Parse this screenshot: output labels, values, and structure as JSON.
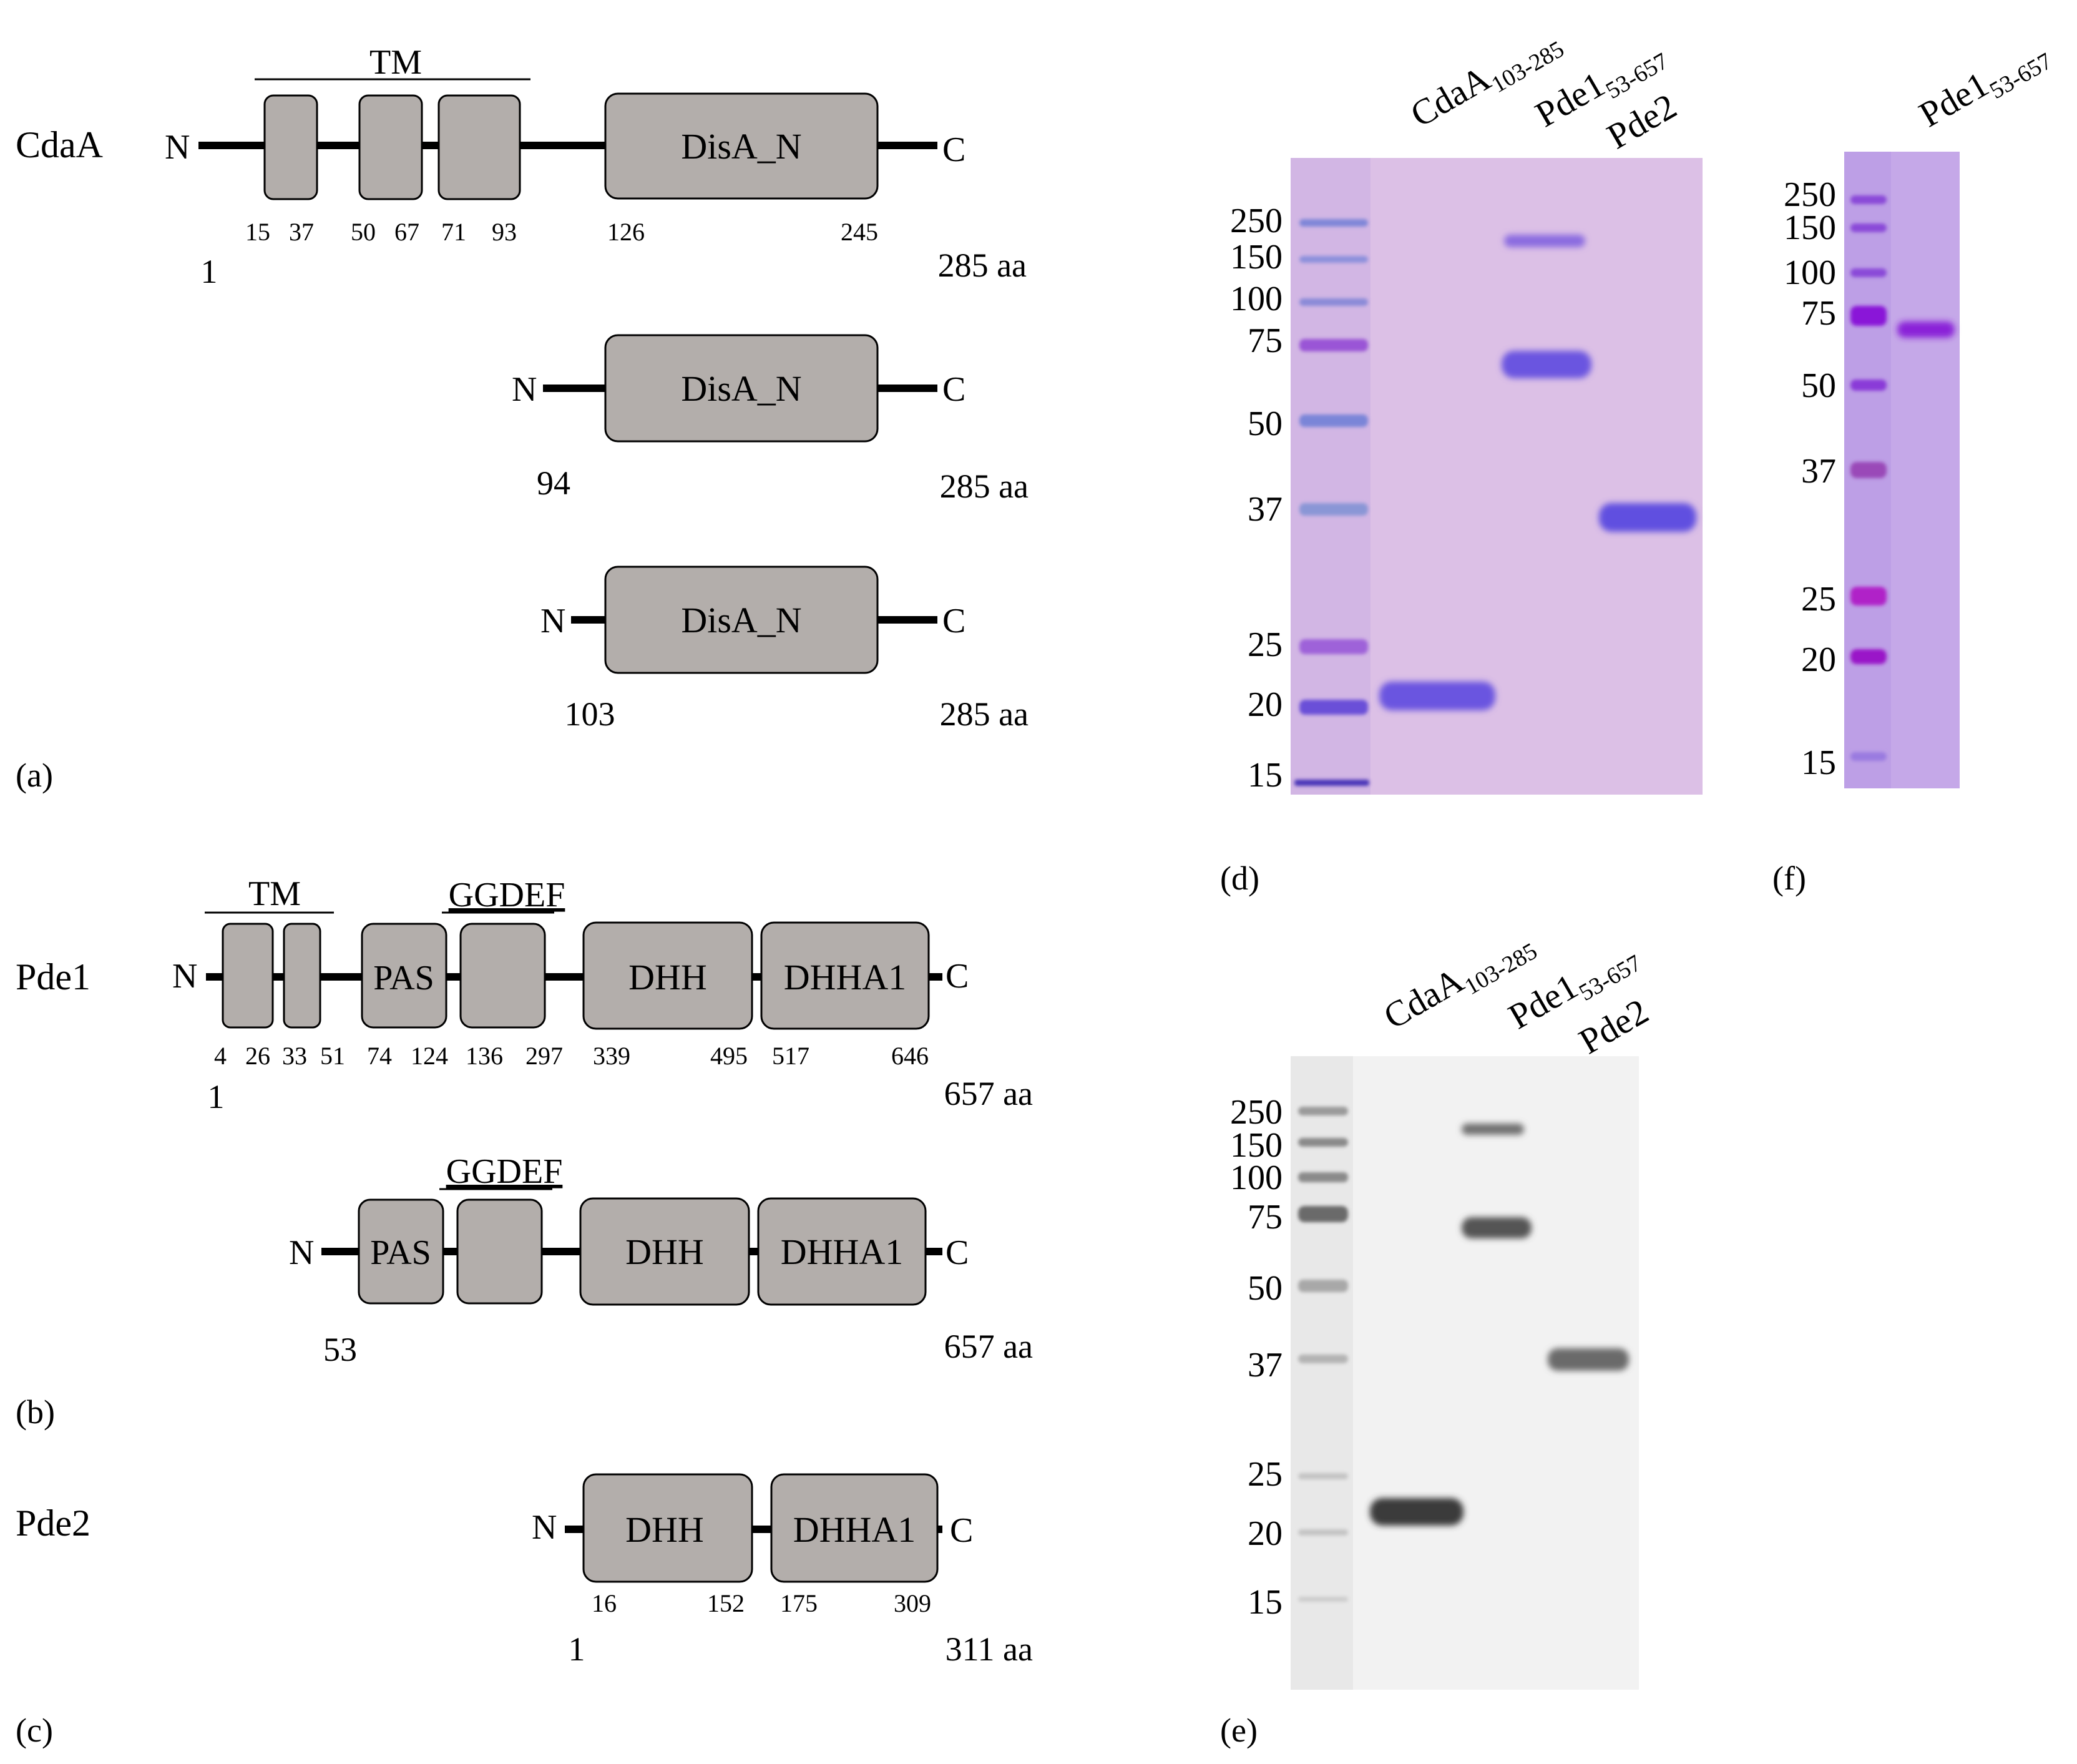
{
  "panel_labels": {
    "a": "(a)",
    "b": "(b)",
    "c": "(c)",
    "d": "(d)",
    "e": "(e)",
    "f": "(f)"
  },
  "panel_a": {
    "protein": "CdaA",
    "tm": "TM",
    "domain": "DisA_N",
    "n": "N",
    "c": "C",
    "full": {
      "positions": [
        "15",
        "37",
        "50",
        "67",
        "71",
        "93",
        "126",
        "245"
      ],
      "start": "1",
      "end": "285 aa"
    },
    "construct1": {
      "start": "94",
      "end": "285 aa"
    },
    "construct2": {
      "start": "103",
      "end": "285 aa"
    }
  },
  "panel_b": {
    "protein": "Pde1",
    "tm": "TM",
    "ggdef": "GGDEF",
    "pas": "PAS",
    "dhh": "DHH",
    "dhha1": "DHHA1",
    "n": "N",
    "c": "C",
    "full": {
      "positions": [
        "4",
        "26",
        "33",
        "51",
        "74",
        "124",
        "136",
        "297",
        "339",
        "495",
        "517",
        "646"
      ],
      "start": "1",
      "end": "657 aa"
    },
    "construct": {
      "start": "53",
      "end": "657 aa"
    }
  },
  "panel_c": {
    "protein": "Pde2",
    "dhh": "DHH",
    "dhha1": "DHHA1",
    "n": "N",
    "c": "C",
    "positions": [
      "16",
      "152",
      "175",
      "309"
    ],
    "start": "1",
    "end": "311 aa"
  },
  "gel_d": {
    "lanes": [
      {
        "main": "CdaA",
        "sub": "103-285"
      },
      {
        "main": "Pde1",
        "sub": "53-657"
      },
      {
        "main": "Pde2",
        "sub": ""
      }
    ],
    "markers": [
      "250",
      "150",
      "100",
      "75",
      "50",
      "37",
      "25",
      "20",
      "15"
    ],
    "colors": {
      "gel": "#d9b8e6",
      "band": "#6d5ae0",
      "marker_band": "#7a82d6"
    }
  },
  "gel_e": {
    "lanes": [
      {
        "main": "CdaA",
        "sub": "103-285"
      },
      {
        "main": "Pde1",
        "sub": "53-657"
      },
      {
        "main": "Pde2",
        "sub": ""
      }
    ],
    "markers": [
      "250",
      "150",
      "100",
      "75",
      "50",
      "37",
      "25",
      "20",
      "15"
    ],
    "colors": {
      "membrane": "#f3f3f3",
      "band": "#4a4a4a"
    }
  },
  "gel_f": {
    "lanes": [
      {
        "main": "Pde1",
        "sub": "53-657"
      }
    ],
    "markers": [
      "250",
      "150",
      "100",
      "75",
      "50",
      "37",
      "25",
      "20",
      "15"
    ],
    "colors": {
      "gel": "#c9aee8",
      "band": "#8a2cd8"
    }
  }
}
